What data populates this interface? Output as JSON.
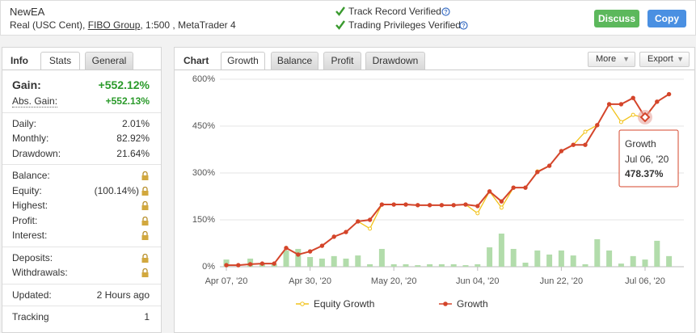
{
  "header": {
    "name": "NewEA",
    "account": "Real (USC Cent)",
    "broker": "FIBO Group",
    "details": ", 1:500 , MetaTrader 4",
    "verifications": [
      "Track Record Verified",
      "Trading Privileges Verified"
    ],
    "buttons": [
      "Discuss",
      "Copy"
    ]
  },
  "info": {
    "title": "Info",
    "tabs": [
      "Stats",
      "General"
    ],
    "groups": [
      [
        {
          "label": "Gain:",
          "value": "+552.12%"
        },
        {
          "label": "Abs. Gain:",
          "value": "+552.13%"
        }
      ],
      [
        {
          "label": "Daily:",
          "value": "2.01%"
        },
        {
          "label": "Monthly:",
          "value": "82.92%"
        },
        {
          "label": "Drawdown:",
          "value": "21.64%"
        }
      ],
      [
        {
          "label": "Balance:",
          "locked": true
        },
        {
          "label": "Equity:",
          "value": "(100.14%)",
          "locked": true
        },
        {
          "label": "Highest:",
          "locked": true
        },
        {
          "label": "Profit:",
          "locked": true
        },
        {
          "label": "Interest:",
          "locked": true
        }
      ],
      [
        {
          "label": "Deposits:",
          "locked": true
        },
        {
          "label": "Withdrawals:",
          "locked": true
        }
      ],
      [
        {
          "label": "Updated:",
          "value": "2 Hours ago"
        }
      ],
      [
        {
          "label": "Tracking",
          "value": "1"
        }
      ]
    ]
  },
  "chart_panel": {
    "title": "Chart",
    "tabs": [
      "Growth",
      "Balance",
      "Profit",
      "Drawdown"
    ],
    "menus": [
      "More",
      "Export"
    ]
  },
  "chart_data": {
    "type": "line",
    "categories": [
      "Apr 07, '20",
      null,
      null,
      null,
      null,
      null,
      null,
      "Apr 30, '20",
      null,
      null,
      null,
      null,
      null,
      null,
      "May 20, '20",
      null,
      null,
      null,
      null,
      null,
      null,
      "Jun 04, '20",
      null,
      null,
      null,
      null,
      null,
      null,
      "Jun 22, '20",
      null,
      null,
      null,
      null,
      null,
      null,
      "Jul 06, '20",
      null,
      null
    ],
    "series": [
      {
        "name": "Equity Growth",
        "color": "#f2c31b",
        "values": [
          5,
          5,
          8,
          10,
          10,
          60,
          39,
          49,
          67,
          96,
          111,
          145,
          122,
          199,
          199,
          199,
          197,
          197,
          197,
          197,
          199,
          171,
          241,
          189,
          253,
          253,
          305,
          323,
          370,
          390,
          432,
          453,
          520,
          463,
          486,
          476,
          528,
          552.12
        ]
      },
      {
        "name": "Growth",
        "color": "#d4452b",
        "values": [
          5,
          5,
          8,
          10,
          10,
          60,
          39,
          49,
          67,
          96,
          111,
          145,
          150,
          199,
          199,
          199,
          197,
          197,
          197,
          197,
          199,
          194,
          241,
          209,
          253,
          253,
          303,
          323,
          370,
          390,
          390,
          453,
          520,
          520,
          540,
          478.37,
          528,
          552.12
        ]
      }
    ],
    "bars": {
      "color": "#b2dcab",
      "values": [
        23,
        0,
        26,
        8,
        8,
        52,
        57,
        31,
        26,
        34,
        26,
        36,
        8,
        57,
        8,
        8,
        5,
        8,
        8,
        8,
        5,
        8,
        62,
        106,
        57,
        13,
        52,
        39,
        52,
        36,
        8,
        88,
        52,
        10,
        34,
        23,
        83,
        34
      ]
    },
    "ylim": [
      0,
      600
    ],
    "yticks": [
      {
        "value": 0,
        "label": "0%"
      },
      {
        "value": 150,
        "label": "150%"
      },
      {
        "value": 300,
        "label": "300%"
      },
      {
        "value": 450,
        "label": "450%"
      },
      {
        "value": 600,
        "label": "600%"
      }
    ],
    "grid": true,
    "tooltip": {
      "title": "Growth",
      "date": "Jul 06, '20",
      "value": "478.37%"
    }
  }
}
